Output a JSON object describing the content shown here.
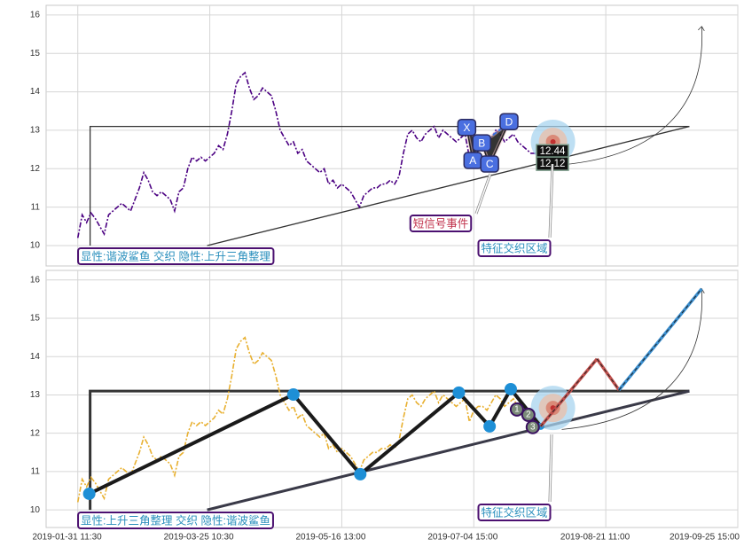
{
  "chart_data": [
    {
      "type": "line",
      "x": [
        0,
        1,
        2,
        3,
        4,
        5,
        6,
        7,
        8,
        9,
        10,
        11,
        12,
        13,
        14,
        15,
        16,
        17,
        18,
        19,
        20,
        21,
        22,
        23,
        24,
        25,
        26,
        27,
        28,
        29,
        30,
        31,
        32,
        33,
        34,
        35,
        36,
        37,
        38,
        39,
        40,
        41,
        42,
        43,
        44,
        45,
        46,
        47,
        48,
        49,
        50,
        51,
        52,
        53,
        54,
        55,
        56,
        57,
        58,
        59,
        60,
        61,
        62,
        63,
        64,
        65,
        66,
        67,
        68,
        69,
        70,
        71,
        72,
        73,
        74,
        75,
        76,
        77,
        78,
        79,
        80,
        81,
        82,
        83,
        84,
        85,
        86,
        87,
        88,
        89,
        90,
        91,
        92,
        93,
        94,
        95,
        96,
        97,
        98,
        99,
        100,
        101,
        102,
        103,
        104,
        105
      ],
      "series": [
        {
          "color": "#4b0082",
          "values": [
            10.2,
            10.8,
            10.6,
            10.85,
            10.7,
            10.5,
            10.3,
            10.8,
            10.9,
            11.0,
            11.1,
            11.0,
            10.9,
            11.2,
            11.5,
            11.9,
            11.7,
            11.4,
            11.3,
            11.4,
            11.3,
            11.2,
            10.9,
            11.4,
            11.5,
            12.0,
            12.3,
            12.2,
            12.3,
            12.2,
            12.3,
            12.4,
            12.6,
            12.5,
            12.9,
            13.5,
            14.2,
            14.4,
            14.5,
            14.1,
            13.8,
            13.9,
            14.1,
            14.0,
            13.9,
            13.5,
            13.0,
            12.8,
            12.6,
            12.7,
            12.4,
            12.5,
            12.2,
            12.1,
            12.0,
            11.9,
            12.0,
            11.6,
            11.7,
            11.5,
            11.6,
            11.5,
            11.4,
            11.2,
            11.0,
            11.3,
            11.4,
            11.5,
            11.5,
            11.6,
            11.6,
            11.7,
            11.6,
            11.8,
            12.4,
            12.9,
            13.0,
            12.8,
            12.7,
            12.9,
            13.0,
            13.1,
            12.8,
            13.0,
            12.9,
            12.8,
            12.7,
            12.8,
            12.9,
            12.3,
            12.6,
            12.7,
            12.7,
            12.6,
            12.8,
            13.0,
            12.9,
            12.7,
            12.8,
            12.9,
            12.7,
            12.6,
            12.5,
            12.4,
            12.4,
            12.3
          ]
        }
      ],
      "xlim": [
        -7.2,
        150
      ],
      "xticks": [
        0,
        30,
        60,
        90,
        120,
        150
      ],
      "ylim": [
        9.47,
        16.25
      ],
      "yticks": [
        10,
        11,
        12,
        13,
        14,
        15,
        16
      ],
      "grid": true,
      "lines": [
        {
          "color": "#333333",
          "x": [
            2.8,
            2.8,
            139
          ],
          "y": [
            10,
            13.1,
            13.1
          ]
        },
        {
          "color": "#333333",
          "x": [
            29.4,
            139
          ],
          "y": [
            10,
            13.1
          ]
        }
      ],
      "arrow": {
        "x": [
          110,
          141.8
        ],
        "y": [
          12.1,
          15.7
        ]
      },
      "harmonic": {
        "labels": [
          "X",
          "A",
          "B",
          "C",
          "D"
        ],
        "x": [
          88.4,
          89.8,
          91.8,
          93.6,
          98
        ],
        "y": [
          13.05,
          12.19,
          12.65,
          12.1,
          13.2
        ]
      },
      "levels": [
        12.44,
        12.12
      ],
      "target": {
        "x": 108,
        "y": 12.7
      },
      "annotations": [
        "显性:谐波鲨鱼 交织 隐性:上升三角整理",
        "短信号事件",
        "特征交织区域"
      ]
    },
    {
      "type": "line",
      "x": [
        0,
        1,
        2,
        3,
        4,
        5,
        6,
        7,
        8,
        9,
        10,
        11,
        12,
        13,
        14,
        15,
        16,
        17,
        18,
        19,
        20,
        21,
        22,
        23,
        24,
        25,
        26,
        27,
        28,
        29,
        30,
        31,
        32,
        33,
        34,
        35,
        36,
        37,
        38,
        39,
        40,
        41,
        42,
        43,
        44,
        45,
        46,
        47,
        48,
        49,
        50,
        51,
        52,
        53,
        54,
        55,
        56,
        57,
        58,
        59,
        60,
        61,
        62,
        63,
        64,
        65,
        66,
        67,
        68,
        69,
        70,
        71,
        72,
        73,
        74,
        75,
        76,
        77,
        78,
        79,
        80,
        81,
        82,
        83,
        84,
        85,
        86,
        87,
        88,
        89,
        90,
        91,
        92,
        93,
        94,
        95,
        96,
        97,
        98,
        99,
        100,
        101,
        102,
        103,
        104,
        105
      ],
      "series": [
        {
          "color": "#e8b030",
          "values": [
            10.2,
            10.8,
            10.6,
            10.85,
            10.7,
            10.5,
            10.3,
            10.8,
            10.9,
            11.0,
            11.1,
            11.0,
            10.9,
            11.2,
            11.5,
            11.9,
            11.7,
            11.4,
            11.3,
            11.4,
            11.3,
            11.2,
            10.9,
            11.4,
            11.5,
            12.0,
            12.3,
            12.2,
            12.3,
            12.2,
            12.3,
            12.4,
            12.6,
            12.5,
            12.9,
            13.5,
            14.2,
            14.4,
            14.5,
            14.1,
            13.8,
            13.9,
            14.1,
            14.0,
            13.9,
            13.5,
            13.0,
            12.8,
            12.6,
            12.7,
            12.4,
            12.5,
            12.2,
            12.1,
            12.0,
            11.9,
            12.0,
            11.6,
            11.7,
            11.5,
            11.6,
            11.5,
            11.4,
            11.2,
            11.0,
            11.3,
            11.4,
            11.5,
            11.5,
            11.6,
            11.6,
            11.7,
            11.6,
            11.8,
            12.4,
            12.9,
            13.0,
            12.8,
            12.7,
            12.9,
            13.0,
            13.1,
            12.8,
            13.0,
            12.9,
            12.8,
            12.7,
            12.8,
            12.9,
            12.3,
            12.6,
            12.7,
            12.7,
            12.6,
            12.8,
            13.0,
            12.9,
            12.7,
            12.8,
            12.9,
            12.7,
            12.6,
            12.5,
            12.4,
            12.4,
            12.3
          ]
        }
      ],
      "xlim": [
        -7.2,
        150
      ],
      "xticks": [
        {
          "value": 0,
          "label": "2019-01-31 11:30"
        },
        {
          "value": 30,
          "label": "2019-03-25 10:30"
        },
        {
          "value": 60,
          "label": "2019-05-16 13:00"
        },
        {
          "value": 90,
          "label": "2019-07-04 15:00"
        },
        {
          "value": 120,
          "label": "2019-08-21 11:00"
        },
        {
          "value": 150,
          "label": "2019-09-25 15:00"
        }
      ],
      "ylim": [
        9.54,
        16.25
      ],
      "yticks": [
        10,
        11,
        12,
        13,
        14,
        15,
        16
      ],
      "grid": true,
      "lines": [
        {
          "color": "#333333",
          "x": [
            2.8,
            2.8,
            139
          ],
          "y": [
            10,
            13.1,
            13.1
          ]
        },
        {
          "color": "#3a3a48",
          "x": [
            29.4,
            139
          ],
          "y": [
            10,
            13.1
          ]
        }
      ],
      "arrow": {
        "x": [
          110,
          141.8
        ],
        "y": [
          12.1,
          15.77
        ]
      },
      "zigzag": {
        "color": "#1a1a1a",
        "marker_color": "#1e8fd6",
        "x": [
          2.6,
          49,
          64.2,
          86.6,
          93.6,
          98.4,
          105.2
        ],
        "y": [
          10.42,
          13.01,
          10.93,
          13.06,
          12.18,
          13.15,
          12.18
        ]
      },
      "projection": {
        "colors": [
          "#c0504d",
          "#c0504d",
          "#3a8fd0"
        ],
        "x": [
          105.2,
          118,
          123,
          141.8
        ],
        "y": [
          12.18,
          13.94,
          13.13,
          15.77
        ]
      },
      "points": {
        "labels": [
          "1",
          "2",
          "3"
        ],
        "x": [
          99.8,
          102.4,
          103.4
        ],
        "y": [
          12.62,
          12.48,
          12.16
        ]
      },
      "target": {
        "x": 108,
        "y": 12.66
      },
      "annotations": [
        "显性:上升三角整理 交织 隐性:谐波鲨鱼",
        "特征交织区域"
      ]
    }
  ]
}
